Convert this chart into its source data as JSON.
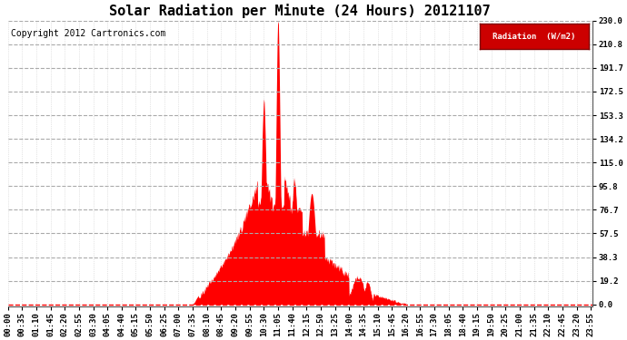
{
  "title": "Solar Radiation per Minute (24 Hours) 20121107",
  "copyright": "Copyright 2012 Cartronics.com",
  "legend_label": "Radiation  (W/m2)",
  "ylabel_values": [
    0.0,
    19.2,
    38.3,
    57.5,
    76.7,
    95.8,
    115.0,
    134.2,
    153.3,
    172.5,
    191.7,
    210.8,
    230.0
  ],
  "ymax": 230.0,
  "fill_color": "#ff0000",
  "background_color": "#ffffff",
  "grid_color_h": "#cccccc",
  "grid_color_v": "#cccccc",
  "title_fontsize": 11,
  "tick_fontsize": 6.5,
  "copyright_fontsize": 7,
  "x_tick_interval": 35,
  "total_minutes": 1440,
  "figwidth": 6.9,
  "figheight": 3.75,
  "dpi": 100
}
